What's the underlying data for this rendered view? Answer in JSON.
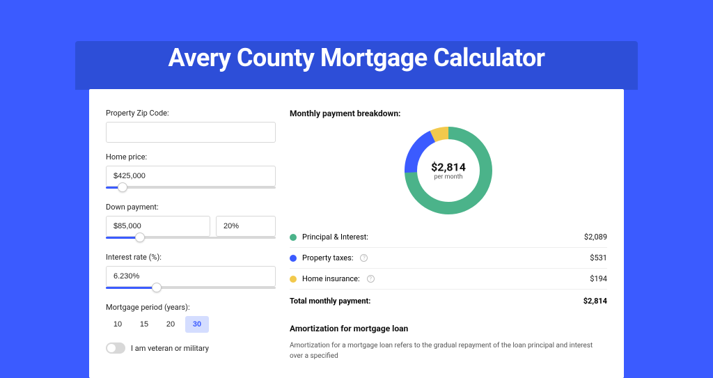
{
  "title": "Avery County Mortgage Calculator",
  "form": {
    "zip_label": "Property Zip Code:",
    "zip_value": "",
    "home_price_label": "Home price:",
    "home_price_value": "$425,000",
    "home_price_slider_pct": 10,
    "down_payment_label": "Down payment:",
    "down_payment_value": "$85,000",
    "down_payment_pct_value": "20%",
    "down_payment_slider_pct": 20,
    "interest_label": "Interest rate (%):",
    "interest_value": "6.230%",
    "interest_slider_pct": 30,
    "period_label": "Mortgage period (years):",
    "periods": [
      "10",
      "15",
      "20",
      "30"
    ],
    "period_active_index": 3,
    "veteran_label": "I am veteran or military"
  },
  "breakdown": {
    "title": "Monthly payment breakdown:",
    "center_amount": "$2,814",
    "center_sub": "per month",
    "donut": {
      "size": 126,
      "thickness": 18,
      "slices": [
        {
          "color": "#4bb38a",
          "pct": 74.2
        },
        {
          "color": "#3b5bff",
          "pct": 18.9
        },
        {
          "color": "#f2c94c",
          "pct": 6.9
        }
      ]
    },
    "items": [
      {
        "label": "Principal & Interest:",
        "value": "$2,089",
        "color": "#4bb38a",
        "info": false
      },
      {
        "label": "Property taxes:",
        "value": "$531",
        "color": "#3b5bff",
        "info": true
      },
      {
        "label": "Home insurance:",
        "value": "$194",
        "color": "#f2c94c",
        "info": true
      }
    ],
    "total_label": "Total monthly payment:",
    "total_value": "$2,814"
  },
  "amortization": {
    "title": "Amortization for mortgage loan",
    "text": "Amortization for a mortgage loan refers to the gradual repayment of the loan principal and interest over a specified"
  },
  "colors": {
    "page_bg": "#3b5bff",
    "header_strip": "#2d4ed8",
    "card_bg": "#ffffff",
    "border": "#d8d8d8",
    "active_pill_bg": "#d4ddff",
    "active_pill_text": "#3b5bff"
  }
}
